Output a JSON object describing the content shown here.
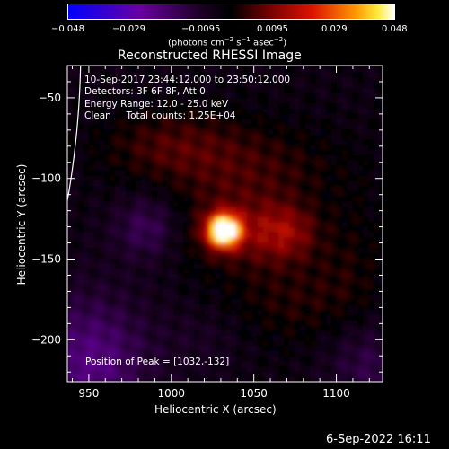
{
  "colorbar": {
    "ticks": [
      "−0.048",
      "−0.029",
      "−0.0095",
      "0.0095",
      "0.029",
      "0.048"
    ],
    "units_prefix": "(photons cm",
    "units_exp1": "−2",
    "units_mid": " s",
    "units_exp2": "−1",
    "units_mid2": " asec",
    "units_exp3": "−2",
    "units_suffix": ")"
  },
  "chart_data": {
    "type": "heatmap",
    "title": "Reconstructed RHESSI Image",
    "xlabel": "Heliocentric X (arcsec)",
    "ylabel": "Heliocentric Y (arcsec)",
    "xlim": [
      937,
      1128
    ],
    "ylim": [
      -226,
      -30
    ],
    "xticks": [
      950,
      1000,
      1050,
      1100
    ],
    "yticks": [
      -50,
      -100,
      -150,
      -200
    ],
    "zlim": [
      -0.048,
      0.048
    ],
    "annotations": [
      "10-Sep-2017 23:44:12.000 to 23:50:12.000",
      "Detectors: 3F 6F 8F, Att 0",
      "Energy Range: 12.0 - 25.0 keV",
      "Clean     Total counts: 1.25E+04"
    ],
    "peak_label": "Position of Peak = [1032,-132]",
    "peak": [
      1032,
      -132
    ],
    "limb_line": "white solar limb on left"
  },
  "footer": {
    "date": "6-Sep-2022 16:11"
  }
}
